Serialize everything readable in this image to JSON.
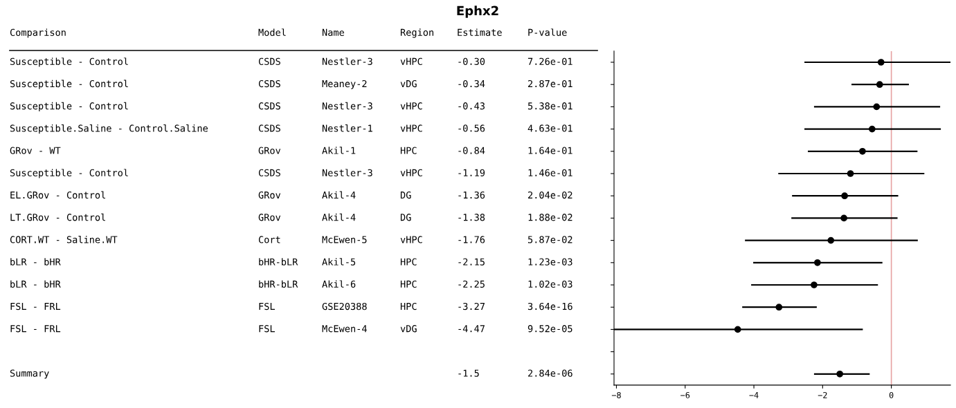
{
  "chart_data": [
    {
      "type": "other",
      "title": "Ephx2",
      "categories": [
        "Comparison",
        "Model",
        "Name",
        "Region",
        "Estimate",
        "P-value"
      ],
      "cell_labels": [
        [
          "Susceptible - Control",
          "CSDS",
          "Nestler-3",
          "vHPC",
          "-0.30",
          "7.26e-01"
        ],
        [
          "Susceptible - Control",
          "CSDS",
          "Meaney-2",
          "vDG",
          "-0.34",
          "2.87e-01"
        ],
        [
          "Susceptible - Control",
          "CSDS",
          "Nestler-3",
          "vHPC",
          "-0.43",
          "5.38e-01"
        ],
        [
          "Susceptible.Saline - Control.Saline",
          "CSDS",
          "Nestler-1",
          "vHPC",
          "-0.56",
          "4.63e-01"
        ],
        [
          "GRov - WT",
          "GRov",
          "Akil-1",
          "HPC",
          "-0.84",
          "1.64e-01"
        ],
        [
          "Susceptible - Control",
          "CSDS",
          "Nestler-3",
          "vHPC",
          "-1.19",
          "1.46e-01"
        ],
        [
          "EL.GRov - Control",
          "GRov",
          "Akil-4",
          "DG",
          "-1.36",
          "2.04e-02"
        ],
        [
          "LT.GRov - Control",
          "GRov",
          "Akil-4",
          "DG",
          "-1.38",
          "1.88e-02"
        ],
        [
          "CORT.WT - Saline.WT",
          "Cort",
          "McEwen-5",
          "vHPC",
          "-1.76",
          "5.87e-02"
        ],
        [
          "bLR - bHR",
          "bHR-bLR",
          "Akil-5",
          "HPC",
          "-2.15",
          "1.23e-03"
        ],
        [
          "bLR - bHR",
          "bHR-bLR",
          "Akil-6",
          "HPC",
          "-2.25",
          "1.02e-03"
        ],
        [
          "FSL - FRL",
          "FSL",
          "GSE20388",
          "HPC",
          "-3.27",
          "3.64e-16"
        ],
        [
          "FSL - FRL",
          "FSL",
          "McEwen-4",
          "vDG",
          "-4.47",
          "9.52e-05"
        ],
        [
          null,
          null,
          null,
          null,
          null,
          null
        ],
        [
          "Summary",
          null,
          null,
          null,
          "-1.5",
          "2.84e-06"
        ]
      ]
    },
    {
      "type": "scatter",
      "orientation": "horizontal",
      "marker": "circle",
      "color": "#000000",
      "tick_labels": "x",
      "categories": [
        null,
        null,
        null,
        null,
        null,
        null,
        null,
        null,
        null,
        null,
        null,
        null,
        null,
        null,
        null
      ],
      "values": [
        -0.3,
        -0.34,
        -0.43,
        -0.56,
        -0.84,
        -1.19,
        -1.36,
        -1.38,
        -1.76,
        -2.15,
        -2.25,
        -3.27,
        -4.47,
        null,
        -1.5
      ],
      "errors": [
        [
          -2.53,
          1.72
        ],
        [
          -1.16,
          0.51
        ],
        [
          -2.25,
          1.42
        ],
        [
          -2.53,
          1.44
        ],
        [
          -2.43,
          0.76
        ],
        [
          -3.29,
          0.96
        ],
        [
          -2.89,
          0.2
        ],
        [
          -2.91,
          0.18
        ],
        [
          -4.26,
          0.77
        ],
        [
          -4.02,
          -0.26
        ],
        [
          -4.08,
          -0.39
        ],
        [
          -4.34,
          -2.17
        ],
        [
          -8.07,
          -0.83
        ],
        null,
        [
          -2.25,
          -0.63
        ]
      ],
      "xlim": [
        -8.07,
        1.72
      ],
      "xticks": [
        {
          "value": -8,
          "label": "−8"
        },
        {
          "value": -6,
          "label": "−6"
        },
        {
          "value": -4,
          "label": "−4"
        },
        {
          "value": -2,
          "label": "−2"
        },
        0
      ],
      "ref_lines": [
        {
          "axis": "x",
          "value": 0,
          "color": "#e6a3a3"
        }
      ]
    }
  ]
}
